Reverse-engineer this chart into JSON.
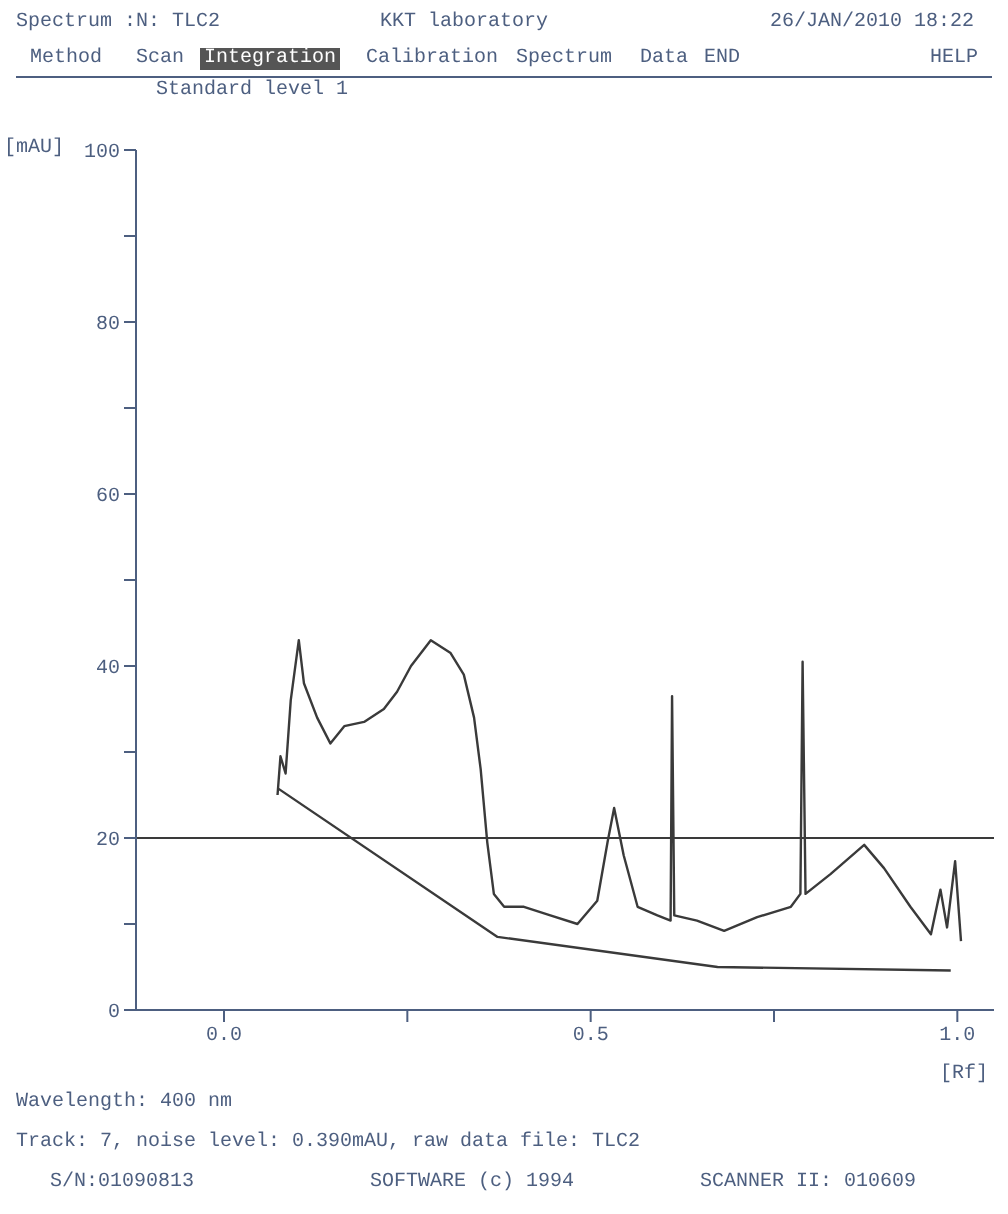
{
  "chart_data": {
    "type": "line",
    "title": "Standard level 1",
    "ylabel": "[mAU]",
    "xlabel": "[Rf]",
    "annotations": [
      "Spectrum",
      ":N: TLC2",
      "KKT laboratory",
      "26/JAN/2010 18:22",
      "Method",
      "Scan",
      "Integration",
      "Calibration",
      "Spectrum",
      "Data",
      "END",
      "HELP",
      "Wavelength: 400 nm",
      "Track: 7, noise level: 0.390mAU, raw data file: TLC2",
      "S/N:01090813",
      "SOFTWARE (c) 1994",
      "SCANNER II: 010609"
    ],
    "series": [
      {
        "color": "#3a3a3a",
        "x": [
          0.073,
          0.077,
          0.084,
          0.091,
          0.102,
          0.109,
          0.127,
          0.145,
          0.164,
          0.191,
          0.218,
          0.236,
          0.255,
          0.282,
          0.309,
          0.327,
          0.341,
          0.35,
          0.359,
          0.368,
          0.382,
          0.409,
          0.445,
          0.482,
          0.509,
          0.523,
          0.532,
          0.545,
          0.564,
          0.591,
          0.609,
          0.611,
          0.614,
          0.645,
          0.682,
          0.727,
          0.773,
          0.786,
          0.789,
          0.793,
          0.827,
          0.873,
          0.9,
          0.936,
          0.964,
          0.977,
          0.986,
          0.997,
          1.005
        ],
        "values": [
          25,
          29.5,
          27.5,
          36,
          43,
          38,
          34,
          31,
          33,
          33.5,
          35,
          37,
          40,
          43,
          41.5,
          39,
          34,
          28,
          19.5,
          13.5,
          12,
          12,
          11,
          10,
          12.7,
          19.5,
          23.5,
          18,
          12,
          11,
          10.4,
          36.5,
          11,
          10.4,
          9.2,
          10.8,
          12,
          13.5,
          40.5,
          13.5,
          15.8,
          19.2,
          16.5,
          12,
          8.8,
          14,
          9.6,
          17.3,
          8
        ]
      },
      {
        "color": "#3a3a3a",
        "x": [
          0.073,
          0.373,
          0.673,
          0.991
        ],
        "values": [
          25.8,
          8.5,
          5,
          4.6
        ]
      }
    ],
    "xlim": [
      -0.12,
      1.05
    ],
    "xticks": [
      {
        "value": 0,
        "label": "0.0"
      },
      {
        "value": 0.25,
        "label": null
      },
      {
        "value": 0.5,
        "label": "0.5"
      },
      {
        "value": 0.75,
        "label": null
      },
      {
        "value": 1,
        "label": "1.0"
      }
    ],
    "ylim": [
      0,
      100
    ],
    "yticks": [
      0,
      {
        "value": 10,
        "label": null
      },
      20,
      {
        "value": 30,
        "label": null
      },
      40,
      {
        "value": 50,
        "label": null
      },
      60,
      {
        "value": 70,
        "label": null
      },
      80,
      {
        "value": 90,
        "label": null
      },
      100
    ],
    "ref_lines": [
      {
        "axis": "y",
        "value": 20,
        "color": "#3a3a3a"
      }
    ],
    "grid": false,
    "legend": false,
    "marker": "none",
    "line_style": "solid"
  }
}
